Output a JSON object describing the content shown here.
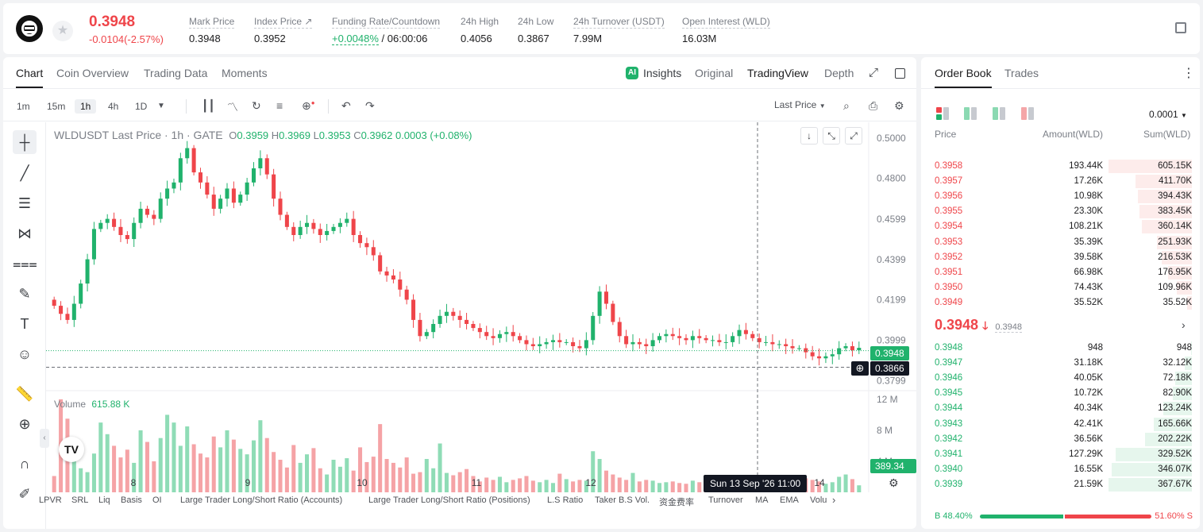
{
  "header": {
    "last_price": "0.3948",
    "change": "-0.0104(-2.57%)",
    "stats": [
      {
        "label": "Mark Price",
        "value": "0.3948"
      },
      {
        "label": "Index Price ↗",
        "value": "0.3952"
      },
      {
        "label": "Funding Rate/Countdown",
        "value_green": "+0.0048%",
        "value": " / 06:00:06"
      },
      {
        "label": "24h High",
        "value": "0.4056"
      },
      {
        "label": "24h Low",
        "value": "0.3867"
      },
      {
        "label": "24h Turnover (USDT)",
        "value": "7.99M"
      },
      {
        "label": "Open Interest (WLD)",
        "value": "16.03M"
      }
    ]
  },
  "chart_tabs": [
    "Chart",
    "Coin Overview",
    "Trading Data",
    "Moments"
  ],
  "view_tabs": [
    "Insights",
    "Original",
    "TradingView",
    "Depth"
  ],
  "timeframes": [
    "1m",
    "15m",
    "1h",
    "4h",
    "1D"
  ],
  "price_type": "Last Price",
  "legend": {
    "symbol": "WLDUSDT Last Price · 1h · GATE",
    "o_label": "O",
    "o": "0.3959",
    "h_label": "H",
    "h": "0.3969",
    "l_label": "L",
    "l": "0.3953",
    "c_label": "C",
    "c": "0.3962",
    "chg": "0.0003 (+0.08%)"
  },
  "volume_legend": {
    "label": "Volume",
    "value": "615.88 K"
  },
  "crosshair": {
    "time_label": "Sun 13 Sep '26   11:00",
    "price_label": "0.3866"
  },
  "current_price_tag": "0.3948",
  "volume_tag": "389.34 K",
  "indicators": [
    "LPVR",
    "SRL",
    "Liq",
    "Basis",
    "OI",
    "Large Trader Long/Short Ratio (Accounts)",
    "Large Trader Long/Short Ratio (Positions)",
    "L.S Ratio",
    "Taker B.S Vol.",
    "资金费率",
    "Turnover",
    "MA",
    "EMA",
    "Volu"
  ],
  "chart_data": {
    "type": "candlestick",
    "title": "WLDUSDT Last Price · 1h · GATE",
    "y_ticks": [
      "0.5000",
      "0.4800",
      "0.4599",
      "0.4399",
      "0.4199",
      "0.3999",
      "0.3799"
    ],
    "x_ticks": [
      "8",
      "9",
      "10",
      "11",
      "12",
      "14"
    ],
    "ylim": [
      0.375,
      0.507
    ],
    "volume_ticks": [
      "12 M",
      "8 M",
      "4 M"
    ],
    "volume_max": 12.5,
    "closes": [
      0.417,
      0.413,
      0.41,
      0.418,
      0.428,
      0.44,
      0.455,
      0.458,
      0.46,
      0.456,
      0.452,
      0.45,
      0.458,
      0.465,
      0.462,
      0.46,
      0.47,
      0.475,
      0.478,
      0.49,
      0.495,
      0.483,
      0.478,
      0.472,
      0.465,
      0.47,
      0.475,
      0.468,
      0.472,
      0.478,
      0.485,
      0.49,
      0.482,
      0.47,
      0.462,
      0.456,
      0.452,
      0.456,
      0.458,
      0.455,
      0.452,
      0.454,
      0.456,
      0.458,
      0.46,
      0.452,
      0.448,
      0.446,
      0.442,
      0.434,
      0.432,
      0.43,
      0.425,
      0.42,
      0.41,
      0.402,
      0.404,
      0.408,
      0.412,
      0.414,
      0.412,
      0.41,
      0.408,
      0.406,
      0.404,
      0.402,
      0.401,
      0.403,
      0.404,
      0.402,
      0.4,
      0.398,
      0.397,
      0.398,
      0.399,
      0.4,
      0.399,
      0.399,
      0.397,
      0.396,
      0.4,
      0.412,
      0.424,
      0.418,
      0.409,
      0.402,
      0.398,
      0.399,
      0.398,
      0.397,
      0.4,
      0.402,
      0.403,
      0.402,
      0.401,
      0.4,
      0.402,
      0.401,
      0.4,
      0.4,
      0.399,
      0.399,
      0.402,
      0.405,
      0.403,
      0.401,
      0.399,
      0.399,
      0.398,
      0.398,
      0.397,
      0.396,
      0.396,
      0.394,
      0.392,
      0.391,
      0.392,
      0.393,
      0.396,
      0.397,
      0.395,
      0.3962
    ],
    "volumes": [
      2.1,
      12.0,
      9.5,
      4.2,
      3.1,
      2.6,
      5.0,
      9.0,
      7.5,
      6.0,
      4.5,
      5.5,
      3.8,
      8.0,
      6.5,
      4.0,
      7.0,
      10.0,
      9.0,
      6.0,
      8.5,
      6.2,
      5.0,
      4.5,
      7.2,
      5.8,
      8.0,
      6.8,
      5.6,
      4.9,
      6.7,
      9.3,
      7.0,
      5.2,
      4.2,
      3.2,
      6.1,
      3.8,
      4.9,
      5.7,
      3.1,
      2.3,
      4.2,
      3.3,
      4.4,
      2.8,
      5.8,
      3.9,
      4.6,
      8.8,
      4.3,
      3.8,
      3.2,
      4.5,
      2.4,
      2.6,
      4.3,
      3.1,
      6.3,
      2.5,
      2.2,
      2.6,
      3.0,
      2.1,
      1.4,
      1.9,
      1.6,
      2.0,
      1.3,
      1.6,
      1.8,
      2.1,
      1.5,
      1.3,
      1.6,
      1.2,
      2.4,
      1.7,
      1.4,
      1.6,
      1.5,
      5.3,
      4.3,
      2.8,
      2.3,
      1.9,
      1.6,
      2.5,
      1.4,
      1.6,
      1.5,
      1.2,
      1.3,
      1.4,
      1.2,
      1.1,
      1.5,
      1.3,
      1.2,
      1.4,
      1.2,
      1.1,
      1.4,
      1.3,
      1.2,
      1.1,
      1.2,
      1.1,
      1.0,
      1.2,
      1.3,
      1.5,
      1.4,
      1.8,
      1.6,
      1.4,
      1.1,
      1.3,
      2.0,
      2.3,
      1.7,
      0.9
    ]
  },
  "order_book": {
    "tabs": [
      "Order Book",
      "Trades"
    ],
    "precision": "0.0001",
    "headers": {
      "price": "Price",
      "amount": "Amount(WLD)",
      "sum": "Sum(WLD)"
    },
    "asks": [
      {
        "price": "0.3958",
        "amount": "193.44K",
        "sum": "605.15K",
        "depth": 1.0
      },
      {
        "price": "0.3957",
        "amount": "17.26K",
        "sum": "411.70K",
        "depth": 0.68
      },
      {
        "price": "0.3956",
        "amount": "10.98K",
        "sum": "394.43K",
        "depth": 0.65
      },
      {
        "price": "0.3955",
        "amount": "23.30K",
        "sum": "383.45K",
        "depth": 0.63
      },
      {
        "price": "0.3954",
        "amount": "108.21K",
        "sum": "360.14K",
        "depth": 0.6
      },
      {
        "price": "0.3953",
        "amount": "35.39K",
        "sum": "251.93K",
        "depth": 0.42
      },
      {
        "price": "0.3952",
        "amount": "39.58K",
        "sum": "216.53K",
        "depth": 0.36
      },
      {
        "price": "0.3951",
        "amount": "66.98K",
        "sum": "176.95K",
        "depth": 0.29
      },
      {
        "price": "0.3950",
        "amount": "74.43K",
        "sum": "109.96K",
        "depth": 0.18
      },
      {
        "price": "0.3949",
        "amount": "35.52K",
        "sum": "35.52K",
        "depth": 0.06
      }
    ],
    "mid_price": "0.3948",
    "mid_arrow": "🡓",
    "mark_price": "0.3948",
    "bids": [
      {
        "price": "0.3948",
        "amount": "948",
        "sum": "948",
        "depth": 0.01
      },
      {
        "price": "0.3947",
        "amount": "31.18K",
        "sum": "32.12K",
        "depth": 0.09
      },
      {
        "price": "0.3946",
        "amount": "40.05K",
        "sum": "72.18K",
        "depth": 0.2
      },
      {
        "price": "0.3945",
        "amount": "10.72K",
        "sum": "82.90K",
        "depth": 0.23
      },
      {
        "price": "0.3944",
        "amount": "40.34K",
        "sum": "123.24K",
        "depth": 0.34
      },
      {
        "price": "0.3943",
        "amount": "42.41K",
        "sum": "165.66K",
        "depth": 0.46
      },
      {
        "price": "0.3942",
        "amount": "36.56K",
        "sum": "202.22K",
        "depth": 0.56
      },
      {
        "price": "0.3941",
        "amount": "127.29K",
        "sum": "329.52K",
        "depth": 0.91
      },
      {
        "price": "0.3940",
        "amount": "16.55K",
        "sum": "346.07K",
        "depth": 0.96
      },
      {
        "price": "0.3939",
        "amount": "21.59K",
        "sum": "367.67K",
        "depth": 1.0
      }
    ],
    "buy_ratio": "B 48.40%",
    "sell_ratio": "51.60% S",
    "buy_fraction": 0.484,
    "colors": {
      "ask_bar": "#fdeceb",
      "bid_bar": "#e6f6ed",
      "up": "#20b26c",
      "down": "#ef454a"
    }
  }
}
